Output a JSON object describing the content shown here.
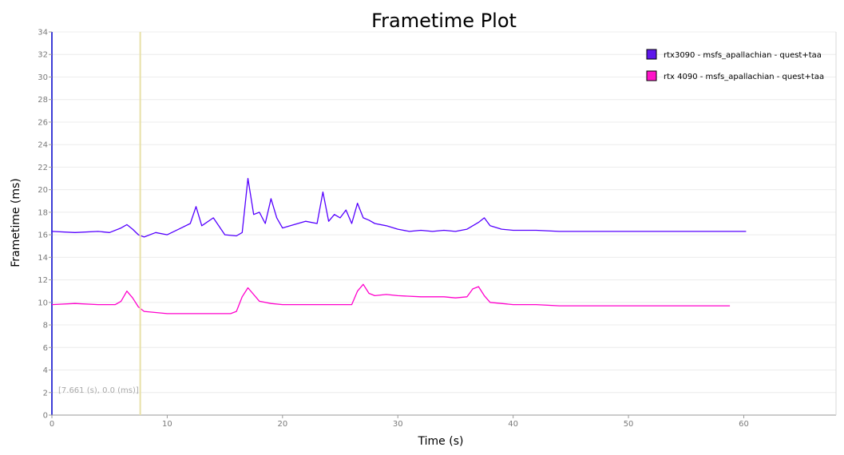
{
  "chart_data": {
    "type": "line",
    "title": "Frametime Plot",
    "xlabel": "Time (s)",
    "ylabel": "Frametime (ms)",
    "xlim": [
      0,
      68
    ],
    "ylim": [
      0,
      34
    ],
    "xticks": [
      0,
      10,
      20,
      30,
      40,
      50,
      60
    ],
    "yticks": [
      0,
      2,
      4,
      6,
      8,
      10,
      12,
      14,
      16,
      18,
      20,
      22,
      24,
      26,
      28,
      30,
      32,
      34
    ],
    "grid": true,
    "legend_position": "top-right",
    "cursor": {
      "x": 7.661,
      "label": "[7.661 (s), 0.0 (ms)]",
      "color": "#e8e0a8"
    },
    "series": [
      {
        "name": "rtx3090 - msfs_apallachian - quest+taa",
        "color": "#5500ff",
        "legend_fill": "#5e17eb",
        "x": [
          0,
          2,
          4,
          5,
          6,
          6.5,
          7,
          7.5,
          8,
          9,
          10,
          11,
          12,
          12.5,
          13,
          14,
          15,
          16,
          16.5,
          17,
          17.5,
          18,
          18.5,
          19,
          19.5,
          20,
          21,
          22,
          23,
          23.5,
          24,
          24.5,
          25,
          25.5,
          26,
          26.5,
          27,
          27.5,
          28,
          29,
          30,
          31,
          32,
          33,
          34,
          35,
          36,
          37,
          37.5,
          38,
          39,
          40,
          42,
          44,
          46,
          48,
          50,
          52,
          54,
          56,
          58,
          60.2
        ],
        "y": [
          16.3,
          16.2,
          16.3,
          16.2,
          16.6,
          16.9,
          16.5,
          16.0,
          15.8,
          16.2,
          16.0,
          16.5,
          17.0,
          18.5,
          16.8,
          17.5,
          16.0,
          15.9,
          16.2,
          21.0,
          17.8,
          18.0,
          17.0,
          19.2,
          17.5,
          16.6,
          16.9,
          17.2,
          17.0,
          19.8,
          17.2,
          17.8,
          17.5,
          18.2,
          17.0,
          18.8,
          17.5,
          17.3,
          17.0,
          16.8,
          16.5,
          16.3,
          16.4,
          16.3,
          16.4,
          16.3,
          16.5,
          17.1,
          17.5,
          16.8,
          16.5,
          16.4,
          16.4,
          16.3,
          16.3,
          16.3,
          16.3,
          16.3,
          16.3,
          16.3,
          16.3,
          16.3
        ]
      },
      {
        "name": "rtx 4090 - msfs_apallachian - quest+taa",
        "color": "#ff00cc",
        "legend_fill": "#ff14c8",
        "x": [
          0,
          2,
          4,
          5.5,
          6,
          6.5,
          7,
          7.5,
          8,
          10,
          12,
          14,
          15.5,
          16,
          16.5,
          17,
          18,
          19,
          20,
          22,
          24,
          26,
          26.5,
          27,
          27.5,
          28,
          29,
          30,
          32,
          34,
          35,
          36,
          36.5,
          37,
          37.5,
          38,
          40,
          42,
          44,
          46,
          48,
          50,
          52,
          54,
          56,
          58,
          58.8
        ],
        "y": [
          9.8,
          9.9,
          9.8,
          9.8,
          10.1,
          11.0,
          10.4,
          9.6,
          9.2,
          9.0,
          9.0,
          9.0,
          9.0,
          9.2,
          10.5,
          11.3,
          10.1,
          9.9,
          9.8,
          9.8,
          9.8,
          9.8,
          11.0,
          11.6,
          10.8,
          10.6,
          10.7,
          10.6,
          10.5,
          10.5,
          10.4,
          10.5,
          11.2,
          11.4,
          10.6,
          10.0,
          9.8,
          9.8,
          9.7,
          9.7,
          9.7,
          9.7,
          9.7,
          9.7,
          9.7,
          9.7,
          9.7
        ]
      }
    ]
  }
}
